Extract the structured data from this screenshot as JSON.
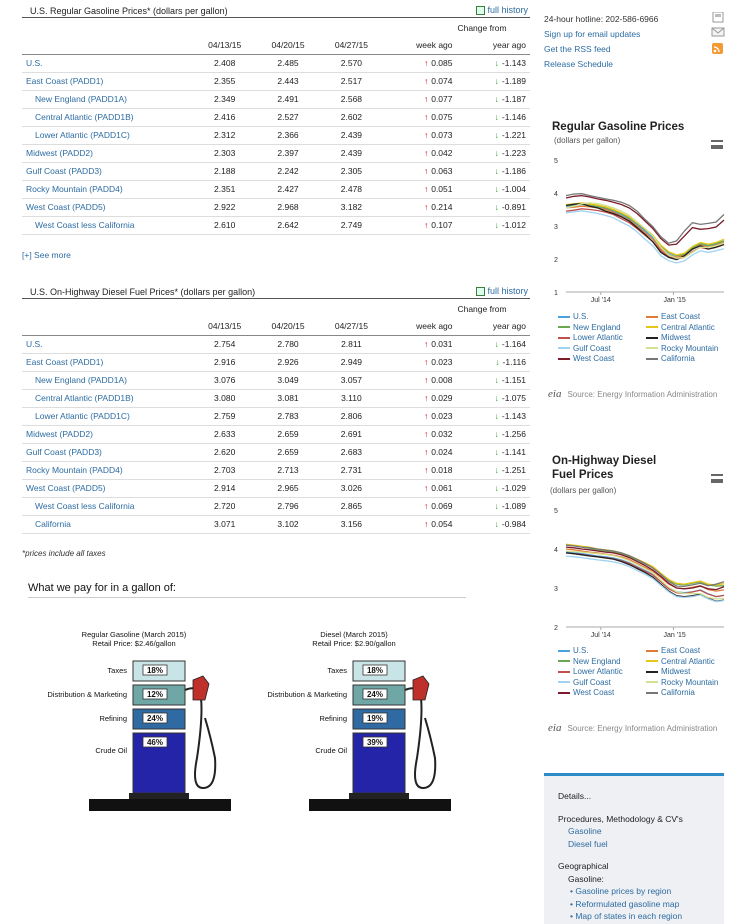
{
  "gasoline": {
    "title": "U.S. Regular Gasoline Prices*  (dollars per gallon)",
    "full_history": "full history",
    "change_from": "Change from",
    "columns": [
      "04/13/15",
      "04/20/15",
      "04/27/15",
      "week ago",
      "year ago"
    ],
    "rows": [
      {
        "area": "U.S.",
        "sub": false,
        "v1": "2.408",
        "v2": "2.485",
        "v3": "2.570",
        "wk": "0.085",
        "wk_dir": "up",
        "yr": "-1.143",
        "yr_dir": "down"
      },
      {
        "area": "East Coast (PADD1)",
        "sub": false,
        "v1": "2.355",
        "v2": "2.443",
        "v3": "2.517",
        "wk": "0.074",
        "wk_dir": "up",
        "yr": "-1.189",
        "yr_dir": "down"
      },
      {
        "area": "New England (PADD1A)",
        "sub": true,
        "v1": "2.349",
        "v2": "2.491",
        "v3": "2.568",
        "wk": "0.077",
        "wk_dir": "up",
        "yr": "-1.187",
        "yr_dir": "down"
      },
      {
        "area": "Central Atlantic (PADD1B)",
        "sub": true,
        "v1": "2.416",
        "v2": "2.527",
        "v3": "2.602",
        "wk": "0.075",
        "wk_dir": "up",
        "yr": "-1.146",
        "yr_dir": "down"
      },
      {
        "area": "Lower Atlantic (PADD1C)",
        "sub": true,
        "v1": "2.312",
        "v2": "2.366",
        "v3": "2.439",
        "wk": "0.073",
        "wk_dir": "up",
        "yr": "-1.221",
        "yr_dir": "down"
      },
      {
        "area": "Midwest (PADD2)",
        "sub": false,
        "v1": "2.303",
        "v2": "2.397",
        "v3": "2.439",
        "wk": "0.042",
        "wk_dir": "up",
        "yr": "-1.223",
        "yr_dir": "down"
      },
      {
        "area": "Gulf Coast (PADD3)",
        "sub": false,
        "v1": "2.188",
        "v2": "2.242",
        "v3": "2.305",
        "wk": "0.063",
        "wk_dir": "up",
        "yr": "-1.186",
        "yr_dir": "down"
      },
      {
        "area": "Rocky Mountain (PADD4)",
        "sub": false,
        "v1": "2.351",
        "v2": "2.427",
        "v3": "2.478",
        "wk": "0.051",
        "wk_dir": "up",
        "yr": "-1.004",
        "yr_dir": "down"
      },
      {
        "area": "West Coast (PADD5)",
        "sub": false,
        "v1": "2.922",
        "v2": "2.968",
        "v3": "3.182",
        "wk": "0.214",
        "wk_dir": "up",
        "yr": "-0.891",
        "yr_dir": "down"
      },
      {
        "area": "West Coast less California",
        "sub": true,
        "v1": "2.610",
        "v2": "2.642",
        "v3": "2.749",
        "wk": "0.107",
        "wk_dir": "up",
        "yr": "-1.012",
        "yr_dir": "down"
      }
    ],
    "see_more": "[+] See more"
  },
  "diesel": {
    "title": "U.S. On-Highway Diesel Fuel Prices*  (dollars per gallon)",
    "full_history": "full history",
    "change_from": "Change from",
    "columns": [
      "04/13/15",
      "04/20/15",
      "04/27/15",
      "week ago",
      "year ago"
    ],
    "rows": [
      {
        "area": "U.S.",
        "sub": false,
        "v1": "2.754",
        "v2": "2.780",
        "v3": "2.811",
        "wk": "0.031",
        "wk_dir": "up",
        "yr": "-1.164",
        "yr_dir": "down"
      },
      {
        "area": "East Coast (PADD1)",
        "sub": false,
        "v1": "2.916",
        "v2": "2.926",
        "v3": "2.949",
        "wk": "0.023",
        "wk_dir": "up",
        "yr": "-1.116",
        "yr_dir": "down"
      },
      {
        "area": "New England (PADD1A)",
        "sub": true,
        "v1": "3.076",
        "v2": "3.049",
        "v3": "3.057",
        "wk": "0.008",
        "wk_dir": "up",
        "yr": "-1.151",
        "yr_dir": "down"
      },
      {
        "area": "Central Atlantic (PADD1B)",
        "sub": true,
        "v1": "3.080",
        "v2": "3.081",
        "v3": "3.110",
        "wk": "0.029",
        "wk_dir": "up",
        "yr": "-1.075",
        "yr_dir": "down"
      },
      {
        "area": "Lower Atlantic (PADD1C)",
        "sub": true,
        "v1": "2.759",
        "v2": "2.783",
        "v3": "2.806",
        "wk": "0.023",
        "wk_dir": "up",
        "yr": "-1.143",
        "yr_dir": "down"
      },
      {
        "area": "Midwest (PADD2)",
        "sub": false,
        "v1": "2.633",
        "v2": "2.659",
        "v3": "2.691",
        "wk": "0.032",
        "wk_dir": "up",
        "yr": "-1.256",
        "yr_dir": "down"
      },
      {
        "area": "Gulf Coast (PADD3)",
        "sub": false,
        "v1": "2.620",
        "v2": "2.659",
        "v3": "2.683",
        "wk": "0.024",
        "wk_dir": "up",
        "yr": "-1.141",
        "yr_dir": "down"
      },
      {
        "area": "Rocky Mountain (PADD4)",
        "sub": false,
        "v1": "2.703",
        "v2": "2.713",
        "v3": "2.731",
        "wk": "0.018",
        "wk_dir": "up",
        "yr": "-1.251",
        "yr_dir": "down"
      },
      {
        "area": "West Coast (PADD5)",
        "sub": false,
        "v1": "2.914",
        "v2": "2.965",
        "v3": "3.026",
        "wk": "0.061",
        "wk_dir": "up",
        "yr": "-1.029",
        "yr_dir": "down"
      },
      {
        "area": "West Coast less California",
        "sub": true,
        "v1": "2.720",
        "v2": "2.796",
        "v3": "2.865",
        "wk": "0.069",
        "wk_dir": "up",
        "yr": "-1.089",
        "yr_dir": "down"
      },
      {
        "area": "California",
        "sub": true,
        "v1": "3.071",
        "v2": "3.102",
        "v3": "3.156",
        "wk": "0.054",
        "wk_dir": "up",
        "yr": "-0.984",
        "yr_dir": "down"
      }
    ]
  },
  "footnote": "*prices include all taxes",
  "what_we_pay": {
    "title": "What we pay for in a gallon of:",
    "gasoline": {
      "title": "Regular Gasoline (March 2015)",
      "retail": "Retail Price: $2.46/gallon",
      "segments": [
        {
          "label": "Taxes",
          "pct": "18%"
        },
        {
          "label": "Distribution & Marketing",
          "pct": "12%"
        },
        {
          "label": "Refining",
          "pct": "24%"
        },
        {
          "label": "Crude Oil",
          "pct": "46%"
        }
      ]
    },
    "diesel": {
      "title": "Diesel (March 2015)",
      "retail": "Retail Price: $2.90/gallon",
      "segments": [
        {
          "label": "Taxes",
          "pct": "18%"
        },
        {
          "label": "Distribution & Marketing",
          "pct": "24%"
        },
        {
          "label": "Refining",
          "pct": "19%"
        },
        {
          "label": "Crude Oil",
          "pct": "39%"
        }
      ]
    }
  },
  "sidebar": {
    "hotline": "24-hour hotline: 202-586-6966",
    "email_link": "Sign up for email updates",
    "rss_link": "Get the RSS feed",
    "schedule_link": "Release Schedule",
    "source": "Source: Energy Information Administration",
    "eia_logo": "eia"
  },
  "chart_data": [
    {
      "type": "line",
      "title": "Regular Gasoline Prices",
      "subtitle": "(dollars per gallon)",
      "ylim": [
        1,
        5
      ],
      "yticks": [
        "1",
        "2",
        "3",
        "4",
        "5"
      ],
      "xticks": [
        "Jul '14",
        "Jan '15"
      ],
      "x": [
        0,
        1,
        2,
        3,
        4,
        5,
        6,
        7,
        8,
        9,
        10,
        11,
        12,
        13,
        14,
        15,
        16,
        17,
        18,
        19,
        20
      ],
      "series": [
        {
          "name": "U.S.",
          "color": "#4aa3df",
          "values": [
            3.6,
            3.62,
            3.65,
            3.62,
            3.58,
            3.52,
            3.45,
            3.35,
            3.22,
            3.05,
            2.85,
            2.65,
            2.35,
            2.15,
            2.05,
            2.1,
            2.3,
            2.45,
            2.4,
            2.45,
            2.55
          ]
        },
        {
          "name": "East Coast",
          "color": "#e07b39",
          "values": [
            3.55,
            3.57,
            3.6,
            3.58,
            3.55,
            3.5,
            3.42,
            3.3,
            3.18,
            3.0,
            2.8,
            2.6,
            2.3,
            2.12,
            2.05,
            2.12,
            2.3,
            2.42,
            2.36,
            2.42,
            2.5
          ]
        },
        {
          "name": "New England",
          "color": "#6aa84f",
          "values": [
            3.62,
            3.64,
            3.66,
            3.63,
            3.6,
            3.55,
            3.48,
            3.38,
            3.25,
            3.08,
            2.9,
            2.7,
            2.4,
            2.2,
            2.1,
            2.15,
            2.33,
            2.47,
            2.41,
            2.47,
            2.55
          ]
        },
        {
          "name": "Central Atlantic",
          "color": "#e6c619",
          "values": [
            3.65,
            3.67,
            3.7,
            3.67,
            3.63,
            3.58,
            3.5,
            3.4,
            3.28,
            3.1,
            2.92,
            2.72,
            2.42,
            2.22,
            2.12,
            2.18,
            2.38,
            2.5,
            2.45,
            2.5,
            2.6
          ]
        },
        {
          "name": "Lower Atlantic",
          "color": "#c0504d",
          "values": [
            3.45,
            3.48,
            3.52,
            3.5,
            3.47,
            3.42,
            3.35,
            3.22,
            3.1,
            2.92,
            2.72,
            2.52,
            2.25,
            2.07,
            2.0,
            2.05,
            2.22,
            2.35,
            2.3,
            2.35,
            2.44
          ]
        },
        {
          "name": "Midwest",
          "color": "#222222",
          "values": [
            3.62,
            3.66,
            3.68,
            3.6,
            3.55,
            3.45,
            3.38,
            3.28,
            3.15,
            2.95,
            2.75,
            2.52,
            2.2,
            2.05,
            1.98,
            2.1,
            2.3,
            2.4,
            2.3,
            2.36,
            2.44
          ]
        },
        {
          "name": "Gulf Coast",
          "color": "#9fd3f0",
          "values": [
            3.4,
            3.43,
            3.46,
            3.42,
            3.38,
            3.32,
            3.25,
            3.12,
            3.0,
            2.82,
            2.6,
            2.4,
            2.1,
            1.95,
            1.88,
            1.95,
            2.12,
            2.25,
            2.2,
            2.25,
            2.31
          ]
        },
        {
          "name": "Rocky Mountain",
          "color": "#d4e08f",
          "values": [
            3.55,
            3.6,
            3.68,
            3.7,
            3.68,
            3.62,
            3.55,
            3.45,
            3.32,
            3.12,
            2.92,
            2.7,
            2.35,
            2.12,
            2.02,
            2.05,
            2.2,
            2.35,
            2.35,
            2.4,
            2.48
          ]
        },
        {
          "name": "West Coast",
          "color": "#7a1c2a",
          "values": [
            3.85,
            3.9,
            3.92,
            3.88,
            3.82,
            3.78,
            3.72,
            3.65,
            3.55,
            3.38,
            3.15,
            2.92,
            2.62,
            2.42,
            2.45,
            2.7,
            2.95,
            2.9,
            2.92,
            2.97,
            3.18
          ]
        },
        {
          "name": "California",
          "color": "#777777",
          "values": [
            3.92,
            3.97,
            3.98,
            3.92,
            3.87,
            3.82,
            3.78,
            3.72,
            3.62,
            3.45,
            3.2,
            2.98,
            2.68,
            2.48,
            2.55,
            2.85,
            3.1,
            3.05,
            3.08,
            3.12,
            3.35
          ]
        }
      ]
    },
    {
      "type": "line",
      "title": "On-Highway Diesel Fuel Prices",
      "subtitle": "(dollars per gallon)",
      "ylim": [
        2,
        5
      ],
      "yticks": [
        "2",
        "3",
        "4",
        "5"
      ],
      "xticks": [
        "Jul '14",
        "Jan '15"
      ],
      "x": [
        0,
        1,
        2,
        3,
        4,
        5,
        6,
        7,
        8,
        9,
        10,
        11,
        12,
        13,
        14,
        15,
        16,
        17,
        18,
        19,
        20
      ],
      "series": [
        {
          "name": "U.S.",
          "color": "#4aa3df",
          "values": [
            3.93,
            3.9,
            3.88,
            3.85,
            3.82,
            3.8,
            3.77,
            3.72,
            3.65,
            3.55,
            3.45,
            3.35,
            3.18,
            3.0,
            2.9,
            2.88,
            2.9,
            2.95,
            2.85,
            2.78,
            2.81
          ]
        },
        {
          "name": "East Coast",
          "color": "#e07b39",
          "values": [
            4.0,
            3.98,
            3.95,
            3.92,
            3.9,
            3.87,
            3.84,
            3.8,
            3.73,
            3.63,
            3.53,
            3.43,
            3.27,
            3.1,
            3.0,
            2.98,
            3.02,
            3.06,
            2.96,
            2.92,
            2.95
          ]
        },
        {
          "name": "New England",
          "color": "#6aa84f",
          "values": [
            4.1,
            4.08,
            4.05,
            4.02,
            3.98,
            3.95,
            3.92,
            3.88,
            3.8,
            3.72,
            3.62,
            3.52,
            3.36,
            3.2,
            3.1,
            3.08,
            3.12,
            3.16,
            3.08,
            3.05,
            3.06
          ]
        },
        {
          "name": "Central Atlantic",
          "color": "#e6c619",
          "values": [
            4.12,
            4.1,
            4.07,
            4.05,
            4.0,
            3.98,
            3.95,
            3.9,
            3.83,
            3.74,
            3.65,
            3.55,
            3.38,
            3.22,
            3.12,
            3.1,
            3.14,
            3.18,
            3.1,
            3.08,
            3.11
          ]
        },
        {
          "name": "Lower Atlantic",
          "color": "#c0504d",
          "values": [
            3.9,
            3.88,
            3.86,
            3.83,
            3.8,
            3.78,
            3.75,
            3.7,
            3.63,
            3.53,
            3.43,
            3.33,
            3.16,
            2.98,
            2.88,
            2.86,
            2.9,
            2.94,
            2.84,
            2.78,
            2.81
          ]
        },
        {
          "name": "Midwest",
          "color": "#222222",
          "values": [
            3.9,
            3.88,
            3.85,
            3.82,
            3.8,
            3.77,
            3.74,
            3.68,
            3.6,
            3.5,
            3.4,
            3.28,
            3.1,
            2.92,
            2.8,
            2.78,
            2.8,
            2.84,
            2.74,
            2.66,
            2.69
          ]
        },
        {
          "name": "Gulf Coast",
          "color": "#9fd3f0",
          "values": [
            3.82,
            3.8,
            3.78,
            3.75,
            3.72,
            3.7,
            3.67,
            3.62,
            3.55,
            3.45,
            3.35,
            3.24,
            3.07,
            2.9,
            2.78,
            2.76,
            2.78,
            2.82,
            2.72,
            2.65,
            2.68
          ]
        },
        {
          "name": "Rocky Mountain",
          "color": "#d4e08f",
          "values": [
            3.95,
            3.93,
            3.92,
            3.9,
            3.88,
            3.86,
            3.83,
            3.78,
            3.7,
            3.6,
            3.5,
            3.38,
            3.2,
            3.02,
            2.9,
            2.86,
            2.86,
            2.86,
            2.76,
            2.72,
            2.73
          ]
        },
        {
          "name": "West Coast",
          "color": "#7a1c2a",
          "values": [
            4.05,
            4.03,
            4.0,
            3.98,
            3.95,
            3.92,
            3.9,
            3.85,
            3.78,
            3.68,
            3.58,
            3.46,
            3.3,
            3.12,
            3.0,
            2.98,
            3.0,
            3.05,
            2.98,
            2.96,
            3.03
          ]
        },
        {
          "name": "California",
          "color": "#777777",
          "values": [
            4.1,
            4.08,
            4.05,
            4.03,
            4.0,
            3.97,
            3.95,
            3.9,
            3.83,
            3.73,
            3.63,
            3.51,
            3.35,
            3.17,
            3.05,
            3.04,
            3.08,
            3.12,
            3.06,
            3.1,
            3.16
          ]
        }
      ]
    }
  ],
  "details": {
    "heading": "Details...",
    "proc_heading": "Procedures, Methodology & CV's",
    "proc_links": [
      "Gasoline",
      "Diesel fuel"
    ],
    "geo_heading": "Geographical",
    "geo_sub": "Gasoline:",
    "geo_links": [
      "Gasoline prices by region",
      "Reformulated gasoline map",
      "Map of states in each region"
    ]
  }
}
